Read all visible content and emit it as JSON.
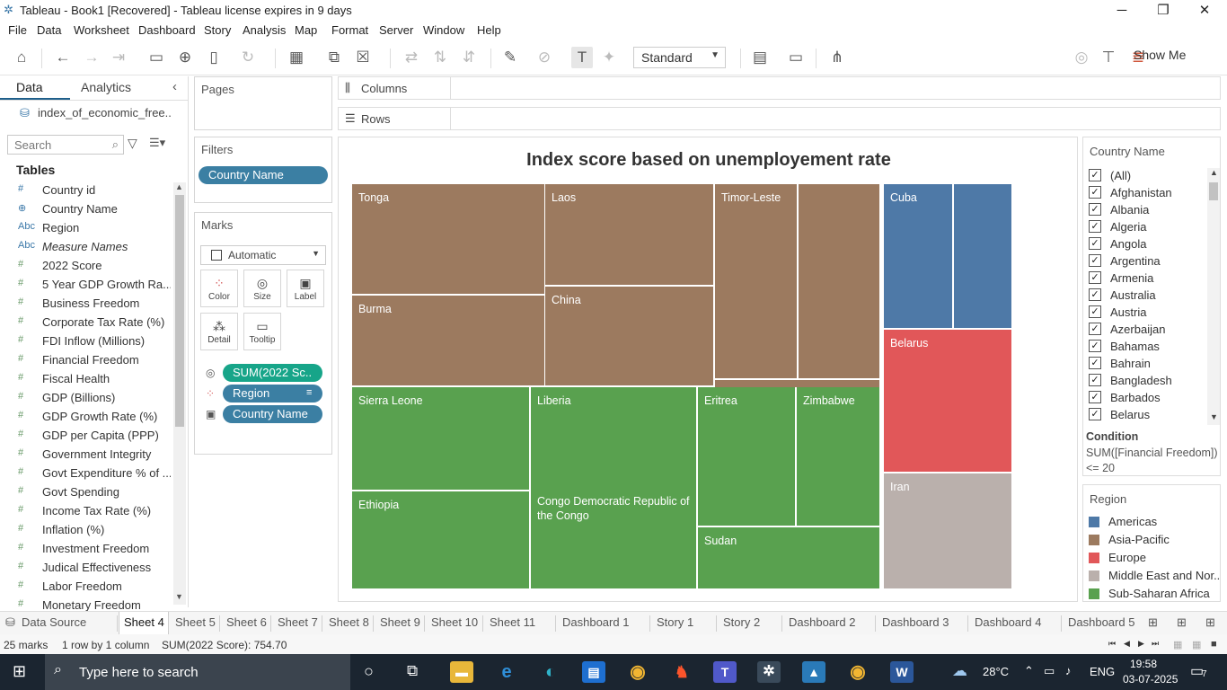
{
  "window": {
    "title": "Tableau - Book1 [Recovered] - Tableau license expires in 9 days",
    "minimize": "─",
    "restore": "❐",
    "close": "✕"
  },
  "menu": [
    "File",
    "Data",
    "Worksheet",
    "Dashboard",
    "Story",
    "Analysis",
    "Map",
    "Format",
    "Server",
    "Window",
    "Help"
  ],
  "toolbar": {
    "fit_select": "Standard",
    "show_me": "Show Me"
  },
  "data_pane": {
    "tab_data": "Data",
    "tab_analytics": "Analytics",
    "datasource": "index_of_economic_free...",
    "search_placeholder": "Search",
    "tables_heading": "Tables",
    "fields": [
      {
        "icon": "#",
        "name": "Country id",
        "kind": "measure-dim"
      },
      {
        "icon": "globe",
        "name": "Country Name",
        "kind": "geo"
      },
      {
        "icon": "Abc",
        "name": "Region",
        "kind": "dim"
      },
      {
        "icon": "Abc",
        "name": "Measure Names",
        "kind": "dim-italic"
      },
      {
        "icon": "#",
        "name": "2022 Score",
        "kind": "measure"
      },
      {
        "icon": "#",
        "name": "5 Year GDP Growth Ra...",
        "kind": "measure"
      },
      {
        "icon": "#",
        "name": "Business Freedom",
        "kind": "measure"
      },
      {
        "icon": "#",
        "name": "Corporate Tax Rate (%)",
        "kind": "measure"
      },
      {
        "icon": "#",
        "name": "FDI Inflow (Millions)",
        "kind": "measure"
      },
      {
        "icon": "#",
        "name": "Financial Freedom",
        "kind": "measure"
      },
      {
        "icon": "#",
        "name": "Fiscal Health",
        "kind": "measure"
      },
      {
        "icon": "#",
        "name": "GDP (Billions)",
        "kind": "measure"
      },
      {
        "icon": "#",
        "name": "GDP Growth Rate (%)",
        "kind": "measure"
      },
      {
        "icon": "#",
        "name": "GDP per Capita (PPP)",
        "kind": "measure"
      },
      {
        "icon": "#",
        "name": "Government Integrity",
        "kind": "measure"
      },
      {
        "icon": "#",
        "name": "Govt Expenditure % of ...",
        "kind": "measure"
      },
      {
        "icon": "#",
        "name": "Govt Spending",
        "kind": "measure"
      },
      {
        "icon": "#",
        "name": "Income Tax Rate (%)",
        "kind": "measure"
      },
      {
        "icon": "#",
        "name": "Inflation (%)",
        "kind": "measure"
      },
      {
        "icon": "#",
        "name": "Investment Freedom",
        "kind": "measure"
      },
      {
        "icon": "#",
        "name": "Judical Effectiveness",
        "kind": "measure"
      },
      {
        "icon": "#",
        "name": "Labor Freedom",
        "kind": "measure"
      },
      {
        "icon": "#",
        "name": "Monetary Freedom",
        "kind": "measure"
      }
    ]
  },
  "shelves": {
    "pages": "Pages",
    "filters": "Filters",
    "filter_pill": "Country Name",
    "marks": "Marks",
    "mark_type": "Automatic",
    "mark_buttons": [
      "Color",
      "Size",
      "Label",
      "Detail",
      "Tooltip"
    ],
    "mark_pills": [
      "SUM(2022 Sc..",
      "Region",
      "Country Name"
    ],
    "columns": "Columns",
    "rows": "Rows"
  },
  "viz": {
    "title": "Index score based on unemployement rate",
    "colors": {
      "Americas": "#4e79a7",
      "Asia-Pacific": "#9c7a5f",
      "Europe": "#e15759",
      "Middle East and North Africa": "#bab0ac",
      "Sub-Saharan Africa": "#59a14f"
    },
    "tiles": [
      {
        "label": "Tonga",
        "region": "Asia-Pacific"
      },
      {
        "label": "Laos",
        "region": "Asia-Pacific"
      },
      {
        "label": "Timor-Leste",
        "region": "Asia-Pacific"
      },
      {
        "label": "",
        "region": "Asia-Pacific"
      },
      {
        "label": "",
        "region": "Asia-Pacific"
      },
      {
        "label": "Burma",
        "region": "Asia-Pacific"
      },
      {
        "label": "China",
        "region": "Asia-Pacific"
      },
      {
        "label": "",
        "region": "Asia-Pacific"
      },
      {
        "label": "Cuba",
        "region": "Americas"
      },
      {
        "label": "",
        "region": "Americas"
      },
      {
        "label": "Belarus",
        "region": "Europe"
      },
      {
        "label": "Iran",
        "region": "Middle East and North Africa"
      },
      {
        "label": "Sierra Leone",
        "region": "Sub-Saharan Africa"
      },
      {
        "label": "Liberia",
        "region": "Sub-Saharan Africa"
      },
      {
        "label": "Eritrea",
        "region": "Sub-Saharan Africa"
      },
      {
        "label": "Zimbabwe",
        "region": "Sub-Saharan Africa"
      },
      {
        "label": "Ethiopia",
        "region": "Sub-Saharan Africa"
      },
      {
        "label": "Congo Democratic Republic of the Congo",
        "region": "Sub-Saharan Africa"
      },
      {
        "label": "Sudan",
        "region": "Sub-Saharan Africa"
      }
    ]
  },
  "country_filter": {
    "title": "Country Name",
    "items": [
      "(All)",
      "Afghanistan",
      "Albania",
      "Algeria",
      "Angola",
      "Argentina",
      "Armenia",
      "Australia",
      "Austria",
      "Azerbaijan",
      "Bahamas",
      "Bahrain",
      "Bangladesh",
      "Barbados",
      "Belarus"
    ],
    "condition_label": "Condition",
    "condition_text": "SUM([Financial Freedom]) <= 20"
  },
  "legend": {
    "title": "Region",
    "items": [
      {
        "name": "Americas",
        "color": "#4e79a7"
      },
      {
        "name": "Asia-Pacific",
        "color": "#9c7a5f"
      },
      {
        "name": "Europe",
        "color": "#e15759"
      },
      {
        "name": "Middle East and Nor..",
        "color": "#bab0ac"
      },
      {
        "name": "Sub-Saharan Africa",
        "color": "#59a14f"
      }
    ]
  },
  "sheet_tabs": [
    "Data Source",
    "Sheet 4",
    "Sheet 5",
    "Sheet 6",
    "Sheet 7",
    "Sheet 8",
    "Sheet 9",
    "Sheet 10",
    "Sheet 11",
    "Dashboard 1",
    "Story 1",
    "Story 2",
    "Dashboard 2",
    "Dashboard 3",
    "Dashboard 4",
    "Dashboard 5"
  ],
  "active_tab": "Sheet 4",
  "status": {
    "marks": "25 marks",
    "rows_cols": "1 row by 1 column",
    "sum": "SUM(2022 Score): 754.70"
  },
  "taskbar": {
    "search_placeholder": "Type here to search",
    "weather": "28°C",
    "lang": "ENG",
    "time": "19:58",
    "date": "03-07-2025",
    "notifications": "7"
  }
}
